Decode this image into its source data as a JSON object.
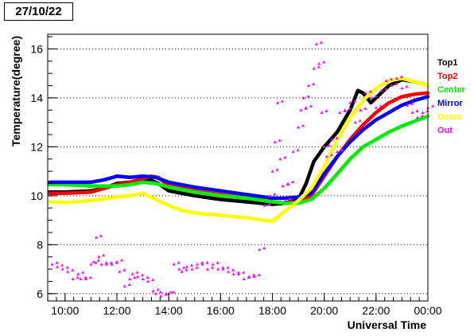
{
  "header": {
    "date": "27/10/22"
  },
  "chart_data": {
    "type": "line",
    "title": "",
    "xlabel": "Universal Time",
    "ylabel": "Temperature(degree)",
    "x_unit": "hours (UT, 24 = 00:00 next day)",
    "xlim": [
      9.33,
      24.0
    ],
    "ylim": [
      5.7,
      16.6
    ],
    "x_ticks": [
      10,
      12,
      14,
      16,
      18,
      20,
      22,
      24
    ],
    "x_tick_labels": [
      "10:00",
      "12:00",
      "14:00",
      "16:00",
      "18:00",
      "20:00",
      "22:00",
      "00:00"
    ],
    "y_ticks": [
      6,
      8,
      10,
      12,
      14,
      16
    ],
    "y_tick_labels": [
      "6",
      "8",
      "10",
      "12",
      "14",
      "16"
    ],
    "grid": "horizontal dotted",
    "legend_position": "right",
    "series": [
      {
        "name": "Top1",
        "color": "#000000",
        "style": "line",
        "x": [
          9.4,
          10.0,
          11.0,
          11.5,
          12.0,
          12.5,
          13.0,
          13.3,
          13.6,
          14.0,
          15.0,
          16.0,
          17.0,
          18.0,
          18.5,
          19.0,
          19.3,
          19.6,
          20.0,
          20.5,
          21.0,
          21.3,
          21.5,
          21.8,
          22.0,
          22.5,
          23.0,
          23.5,
          24.0
        ],
        "y": [
          10.15,
          10.15,
          10.2,
          10.3,
          10.5,
          10.55,
          10.6,
          10.65,
          10.5,
          10.2,
          10.0,
          9.85,
          9.75,
          9.65,
          9.7,
          9.85,
          10.5,
          11.4,
          12.0,
          12.6,
          13.5,
          14.3,
          14.2,
          13.8,
          14.0,
          14.5,
          14.75,
          14.65,
          14.5
        ]
      },
      {
        "name": "Top2",
        "color": "#ff0000",
        "style": "line",
        "x": [
          9.4,
          10.0,
          11.0,
          11.5,
          12.0,
          12.5,
          13.0,
          13.3,
          13.6,
          14.0,
          15.0,
          16.0,
          17.0,
          18.0,
          18.5,
          19.0,
          19.5,
          20.0,
          20.5,
          21.0,
          21.5,
          22.0,
          22.5,
          23.0,
          23.5,
          24.0
        ],
        "y": [
          10.1,
          10.1,
          10.15,
          10.3,
          10.45,
          10.55,
          10.7,
          10.8,
          10.75,
          10.4,
          10.2,
          10.05,
          9.9,
          9.75,
          9.7,
          9.75,
          10.0,
          10.8,
          11.6,
          12.3,
          12.9,
          13.4,
          13.8,
          14.05,
          14.15,
          14.2
        ]
      },
      {
        "name": "Center",
        "color": "#00ee00",
        "style": "line",
        "x": [
          9.4,
          10.0,
          11.0,
          12.0,
          12.5,
          13.0,
          13.5,
          14.0,
          15.0,
          16.0,
          17.0,
          18.0,
          18.5,
          19.0,
          19.5,
          20.0,
          20.5,
          21.0,
          21.5,
          22.0,
          22.5,
          23.0,
          23.5,
          24.0
        ],
        "y": [
          10.45,
          10.45,
          10.4,
          10.4,
          10.45,
          10.55,
          10.5,
          10.35,
          10.15,
          10.0,
          9.9,
          9.75,
          9.7,
          9.7,
          9.85,
          10.3,
          10.9,
          11.5,
          12.0,
          12.3,
          12.6,
          12.85,
          13.05,
          13.25
        ]
      },
      {
        "name": "Mirror",
        "color": "#0000ff",
        "style": "line",
        "x": [
          9.4,
          10.0,
          11.0,
          11.5,
          12.0,
          12.5,
          13.0,
          13.5,
          14.0,
          15.0,
          16.0,
          17.0,
          18.0,
          18.5,
          19.0,
          19.5,
          20.0,
          20.5,
          21.0,
          21.5,
          22.0,
          22.5,
          23.0,
          23.5,
          24.0
        ],
        "y": [
          10.55,
          10.55,
          10.55,
          10.65,
          10.8,
          10.75,
          10.8,
          10.75,
          10.55,
          10.35,
          10.2,
          10.05,
          9.9,
          9.9,
          9.95,
          10.1,
          10.9,
          11.6,
          12.2,
          12.7,
          13.1,
          13.4,
          13.7,
          13.9,
          14.05
        ]
      },
      {
        "name": "Dome",
        "color": "#ffff00",
        "style": "line",
        "x": [
          9.4,
          10.0,
          11.0,
          12.0,
          12.5,
          13.0,
          13.5,
          14.0,
          14.5,
          15.0,
          16.0,
          17.0,
          18.0,
          18.5,
          19.0,
          19.5,
          20.0,
          20.5,
          21.0,
          21.5,
          22.0,
          22.5,
          23.0,
          23.5,
          24.0
        ],
        "y": [
          9.75,
          9.72,
          9.8,
          9.95,
          10.0,
          10.1,
          9.85,
          9.6,
          9.4,
          9.3,
          9.2,
          9.1,
          8.95,
          9.4,
          9.8,
          10.3,
          11.2,
          12.3,
          13.2,
          13.9,
          14.4,
          14.7,
          14.8,
          14.65,
          14.5
        ]
      },
      {
        "name": "Out",
        "color": "#ff00ff",
        "style": "markers",
        "x": [
          9.5,
          9.7,
          9.9,
          10.1,
          10.3,
          10.5,
          10.6,
          10.8,
          11.0,
          11.1,
          11.2,
          11.3,
          11.4,
          11.6,
          11.8,
          12.0,
          12.1,
          12.3,
          12.5,
          12.6,
          12.8,
          13.0,
          13.2,
          13.4,
          13.5,
          13.7,
          13.9,
          14.0,
          14.2,
          14.4,
          14.5,
          14.7,
          14.9,
          15.1,
          15.3,
          15.5,
          15.7,
          15.9,
          16.1,
          16.3,
          16.5,
          16.7,
          16.9,
          17.1,
          17.3,
          17.5,
          17.7,
          17.9,
          18.0,
          18.1,
          18.2,
          18.3,
          18.4,
          18.5,
          18.6,
          18.8,
          19.0,
          19.1,
          19.2,
          19.3,
          19.4,
          19.6,
          19.7,
          19.8,
          19.9,
          20.0,
          20.1,
          20.3,
          20.5,
          20.6,
          20.8,
          21.0,
          21.2,
          21.4,
          21.6,
          21.8,
          22.0,
          22.2,
          22.4,
          22.6,
          22.8,
          23.0,
          23.2,
          23.4,
          23.6,
          23.8,
          24.0
        ],
        "y": [
          7.2,
          7.1,
          7.0,
          6.9,
          6.6,
          6.8,
          6.6,
          6.6,
          7.2,
          7.3,
          8.3,
          7.5,
          7.2,
          7.2,
          7.2,
          7.3,
          6.9,
          6.3,
          6.6,
          6.8,
          6.7,
          6.6,
          6.5,
          6.1,
          6.0,
          5.9,
          6.0,
          6.0,
          7.2,
          7.0,
          6.9,
          7.1,
          7.0,
          7.2,
          7.2,
          7.0,
          7.2,
          7.0,
          7.0,
          6.9,
          6.8,
          6.8,
          6.6,
          6.7,
          6.7,
          7.8,
          9.6,
          10.0,
          11.0,
          12.2,
          13.8,
          11.5,
          10.4,
          9.8,
          10.5,
          11.8,
          12.8,
          13.5,
          14.0,
          13.6,
          14.5,
          15.2,
          16.2,
          15.4,
          13.4,
          12.0,
          11.6,
          12.3,
          11.8,
          13.4,
          13.5,
          13.8,
          13.0,
          13.5,
          14.2,
          14.0,
          13.6,
          14.3,
          14.7,
          14.5,
          14.8,
          14.4,
          13.7,
          13.4,
          13.2,
          13.4,
          13.6
        ]
      }
    ]
  }
}
